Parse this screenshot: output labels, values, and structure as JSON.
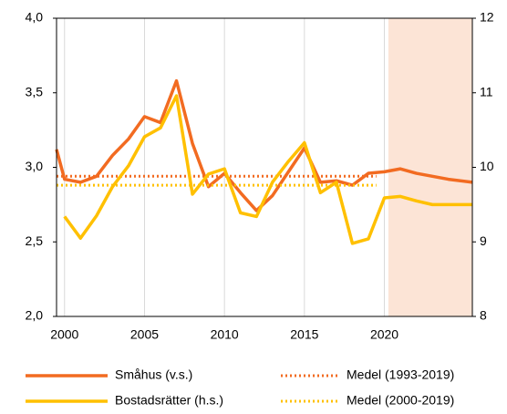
{
  "chart_data": {
    "type": "line",
    "xlim": [
      1999.5,
      2025.5
    ],
    "xticks": [
      2000,
      2005,
      2010,
      2015,
      2020
    ],
    "ylim": [
      2.0,
      4.0
    ],
    "yticks": [
      {
        "value": 2.0,
        "label": "2,0"
      },
      {
        "value": 2.5,
        "label": "2,5"
      },
      {
        "value": 3.0,
        "label": "3,0"
      },
      {
        "value": 3.5,
        "label": "3,5"
      },
      {
        "value": 4.0,
        "label": "4,0"
      }
    ],
    "y2lim": [
      8,
      12
    ],
    "y2ticks": [
      8,
      9,
      10,
      11,
      12
    ],
    "grid": true,
    "shade": {
      "x": [
        2020.25,
        2025.5
      ],
      "color": "#fce4d6"
    },
    "series": [
      {
        "name": "Småhus (v.s.)",
        "color": "#f26b21",
        "style": "solid",
        "x": [
          1999.5,
          2000,
          2001,
          2002,
          2003,
          2004,
          2005,
          2006,
          2007,
          2008,
          2009,
          2010,
          2011,
          2012,
          2013,
          2014,
          2015,
          2016,
          2017,
          2018,
          2019,
          2020,
          2021,
          2022,
          2023,
          2024,
          2025.5
        ],
        "values": [
          3.12,
          2.92,
          2.9,
          2.94,
          3.08,
          3.19,
          3.34,
          3.3,
          3.58,
          3.16,
          2.87,
          2.96,
          2.83,
          2.71,
          2.81,
          2.97,
          3.13,
          2.9,
          2.91,
          2.88,
          2.96,
          2.97,
          2.99,
          2.96,
          2.94,
          2.92,
          2.9
        ]
      },
      {
        "name": "Medel (1993-2019)",
        "color": "#f26b21",
        "style": "dotted",
        "x": [
          1999.5,
          2019.5
        ],
        "values": [
          2.94,
          2.94
        ]
      },
      {
        "name": "Bostadsrätter (h.s.)",
        "color": "#ffc000",
        "style": "solid",
        "axis": "y2",
        "x": [
          2000,
          2001,
          2002,
          2003,
          2004,
          2005,
          2006,
          2007,
          2008,
          2009,
          2010,
          2011,
          2012,
          2013,
          2014,
          2015,
          2016,
          2017,
          2018,
          2019,
          2020,
          2021,
          2022,
          2023,
          2024,
          2025.5
        ],
        "values": [
          9.34,
          9.05,
          9.35,
          9.74,
          10.02,
          10.41,
          10.53,
          10.96,
          9.64,
          9.91,
          9.98,
          9.39,
          9.34,
          9.8,
          10.08,
          10.33,
          9.66,
          9.8,
          8.98,
          9.04,
          9.59,
          9.61,
          9.55,
          9.5,
          9.5,
          9.5
        ]
      },
      {
        "name": "Medel (2000-2019)",
        "color": "#ffc000",
        "style": "dotted",
        "axis": "y2",
        "x": [
          1999.5,
          2019.5
        ],
        "values": [
          9.76,
          9.76
        ]
      }
    ]
  }
}
